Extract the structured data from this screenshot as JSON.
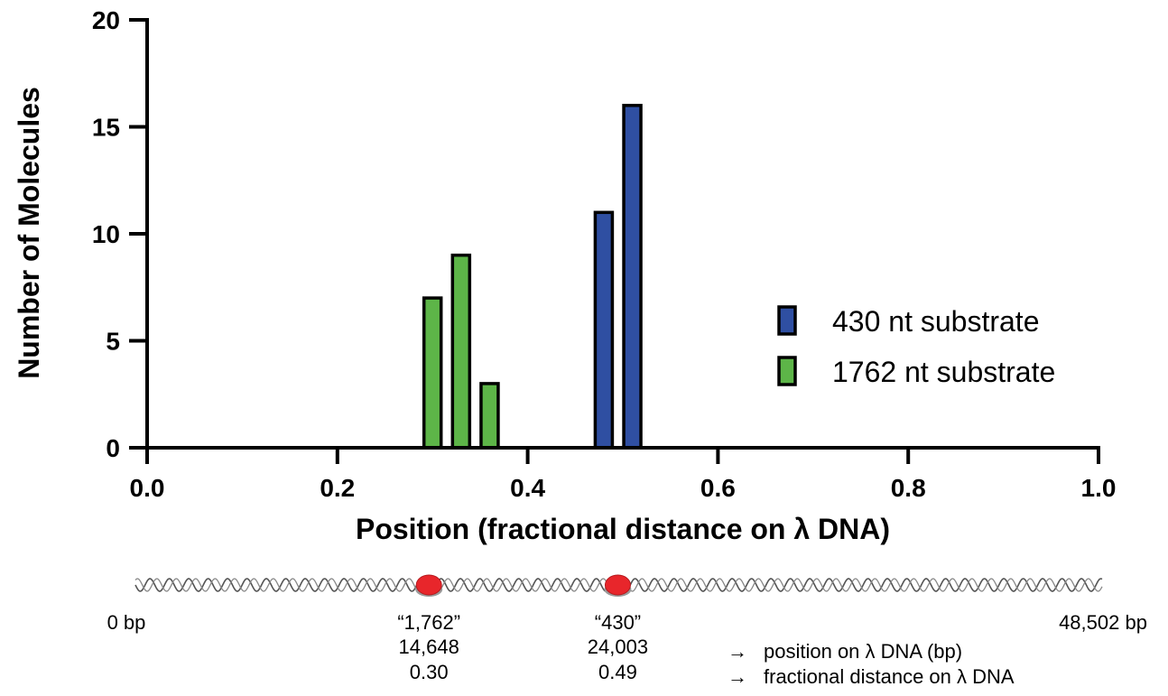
{
  "chart_data": {
    "type": "bar",
    "title": "",
    "xlabel": "Position (fractional distance on λ DNA)",
    "ylabel": "Number of Molecules",
    "xlim": [
      0.0,
      1.0
    ],
    "ylim": [
      0,
      20
    ],
    "x_ticks": [
      "0.0",
      "0.2",
      "0.4",
      "0.6",
      "0.8",
      "1.0"
    ],
    "y_ticks": [
      "0",
      "5",
      "10",
      "15",
      "20"
    ],
    "grid": false,
    "legend_position": "right",
    "series": [
      {
        "name": "430 nt substrate",
        "color": "#2f4fa2",
        "x": [
          0.48,
          0.51
        ],
        "values": [
          11,
          16
        ]
      },
      {
        "name": "1762 nt substrate",
        "color": "#5db548",
        "x": [
          0.3,
          0.33,
          0.36
        ],
        "values": [
          7,
          9,
          3
        ]
      }
    ]
  },
  "dna_map": {
    "start_label": "0 bp",
    "end_label": "48,502 bp",
    "sites": [
      {
        "name": "“1,762”",
        "bp": "14,648",
        "fraction": "0.30",
        "pos": 0.3
      },
      {
        "name": "“430”",
        "bp": "24,003",
        "fraction": "0.49",
        "pos": 0.49
      }
    ],
    "key": [
      {
        "arrow": "→",
        "text": "position on λ DNA (bp)"
      },
      {
        "arrow": "→",
        "text": "fractional distance on λ DNA"
      }
    ],
    "colors": {
      "marker": "#e8262b",
      "marker_shadow": "#9a9a9a",
      "helix": "#555555"
    }
  }
}
